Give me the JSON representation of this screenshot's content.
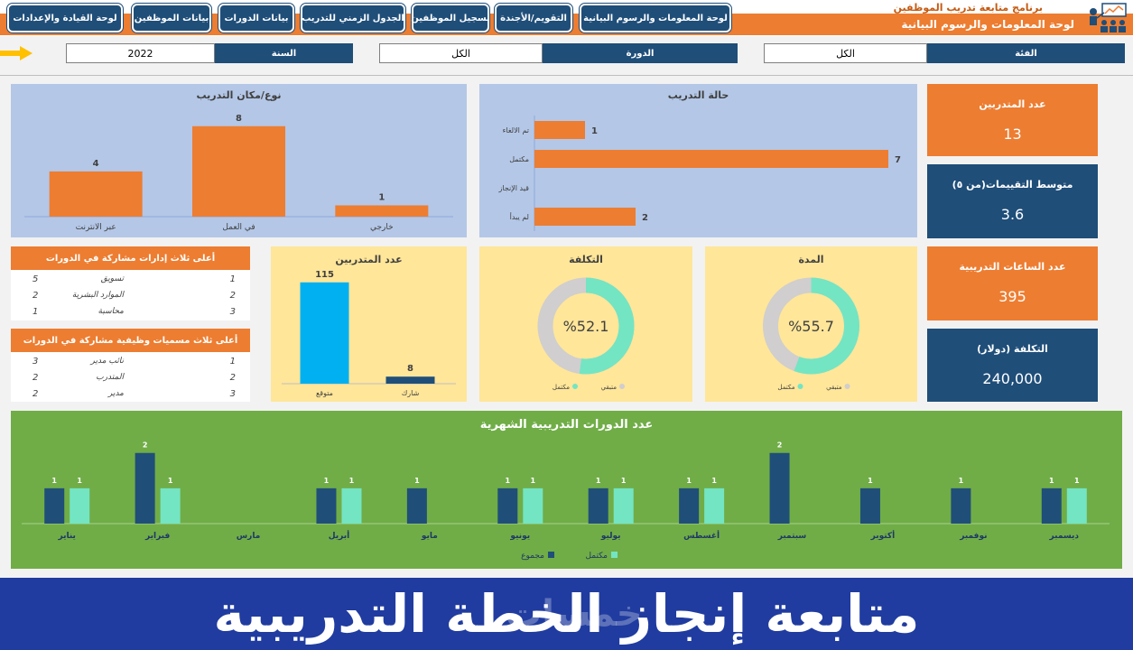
{
  "header": {
    "app_title": "برنامج متابعة تدريب الموظفين",
    "dashboard_title": "لوحة المعلومات والرسوم البيانية",
    "nav": [
      "لوحة المعلومات والرسوم البيانية",
      "التقويم/الأجندة",
      "تسجيل الموظفين",
      "الجدول الزمني للتدريب",
      "بيانات الدورات",
      "بيانات الموظفين",
      "لوحة القيادة والإعدادات"
    ]
  },
  "filters": {
    "category_label": "الفئة",
    "category_value": "الكل",
    "course_label": "الدورة",
    "course_value": "الكل",
    "year_label": "السنة",
    "year_value": "2022"
  },
  "kpis": {
    "trainees_label": "عدد المتدربين",
    "trainees_value": "13",
    "rating_label": "متوسط التقييمات(من ٥)",
    "rating_value": "3.6",
    "hours_label": "عدد الساعات التدريبية",
    "hours_value": "395",
    "cost_label": "التكلفة (دولار)",
    "cost_value": "240,000"
  },
  "top_departments": {
    "title": "أعلى ثلاث إدارات مشاركة في الدورات",
    "rows": [
      {
        "rank": "1",
        "name": "تسويق",
        "count": "5"
      },
      {
        "rank": "2",
        "name": "الموارد البشرية",
        "count": "2"
      },
      {
        "rank": "3",
        "name": "محاسبة",
        "count": "1"
      }
    ]
  },
  "top_titles": {
    "title": "أعلى ثلاث مسميات وظيفية مشاركة في الدورات",
    "rows": [
      {
        "rank": "1",
        "name": "نائب مدير",
        "count": "3"
      },
      {
        "rank": "2",
        "name": "المتدرب",
        "count": "2"
      },
      {
        "rank": "3",
        "name": "مدير",
        "count": "2"
      }
    ]
  },
  "colors": {
    "navy": "#1f4e79",
    "orange": "#ed7d31",
    "lightblue_panel": "#b4c7e7",
    "yellow_panel": "#ffe699",
    "green_panel": "#70ad47",
    "mint": "#73e5c3",
    "cyan": "#00b0f0",
    "banner": "#203ca0"
  },
  "banner": {
    "text": "متابعة إنجاز الخطة التدريبية",
    "watermark": "خمسات"
  },
  "chart_data": [
    {
      "id": "type_place",
      "type": "bar",
      "title": "نوع/مكان التدريب",
      "categories": [
        "عبر الانترنت",
        "في العمل",
        "خارجي"
      ],
      "values": [
        4,
        8,
        1
      ],
      "color": "#ed7d31",
      "ylim": [
        0,
        9.5
      ]
    },
    {
      "id": "status",
      "type": "bar",
      "orientation": "horizontal",
      "title": "حالة التدريب",
      "categories": [
        "تم الالغاء",
        "مكتمل",
        "قيد الإنجاز",
        "لم يبدأ"
      ],
      "values": [
        1,
        7,
        0,
        2
      ],
      "color": "#ed7d31",
      "xlim": [
        0,
        7.5
      ]
    },
    {
      "id": "trainee_count",
      "type": "bar",
      "title": "عدد المتدربين",
      "categories": [
        "متوقع",
        "شارك"
      ],
      "values": [
        115,
        8
      ],
      "colors": [
        "#00b0f0",
        "#1f4e79"
      ],
      "ylim": [
        0,
        125
      ]
    },
    {
      "id": "cost",
      "type": "pie",
      "title": "التكلفة",
      "center_label": "%52.1",
      "categories": [
        "مكتمل",
        "متبقي"
      ],
      "values": [
        52.1,
        47.9
      ],
      "colors": [
        "#73e5c3",
        "#d0cece"
      ]
    },
    {
      "id": "duration",
      "type": "pie",
      "title": "المدة",
      "center_label": "%55.7",
      "categories": [
        "مكتمل",
        "متبقي"
      ],
      "values": [
        55.7,
        44.3
      ],
      "colors": [
        "#73e5c3",
        "#d0cece"
      ]
    },
    {
      "id": "monthly",
      "type": "bar",
      "title": "عدد الدورات التدريبية الشهرية",
      "categories": [
        "يناير",
        "فبراير",
        "مارس",
        "أبريل",
        "مايو",
        "يونيو",
        "يوليو",
        "أغسطس",
        "سبتمبر",
        "أكتوبر",
        "نوفمبر",
        "ديسمبر"
      ],
      "series": [
        {
          "name": "مجموع",
          "color": "#1f4e79",
          "values": [
            1,
            2,
            0,
            1,
            1,
            1,
            1,
            1,
            2,
            1,
            1,
            1
          ]
        },
        {
          "name": "مكتمل",
          "color": "#73e5c3",
          "values": [
            1,
            1,
            0,
            1,
            0,
            1,
            1,
            1,
            0,
            0,
            0,
            1
          ]
        }
      ],
      "ylim": [
        0,
        2.3
      ],
      "legend": "bottom"
    }
  ]
}
